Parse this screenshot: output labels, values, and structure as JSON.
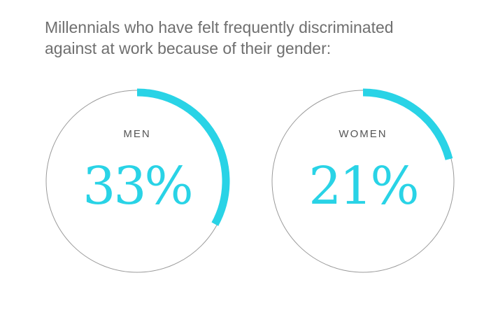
{
  "title_lines": [
    "Millennials who have felt frequently discriminated",
    "against at work because of their gender:"
  ],
  "colors": {
    "accent": "#29d3e6",
    "ring": "#9a9a9a",
    "title": "#6f6f6f"
  },
  "chart_data": {
    "type": "pie",
    "title": "Millennials who have felt frequently discriminated against at work because of their gender:",
    "categories": [
      "MEN",
      "WOMEN"
    ],
    "values": [
      33,
      21
    ],
    "unit": "%",
    "labels": [
      "33%",
      "21%"
    ]
  }
}
